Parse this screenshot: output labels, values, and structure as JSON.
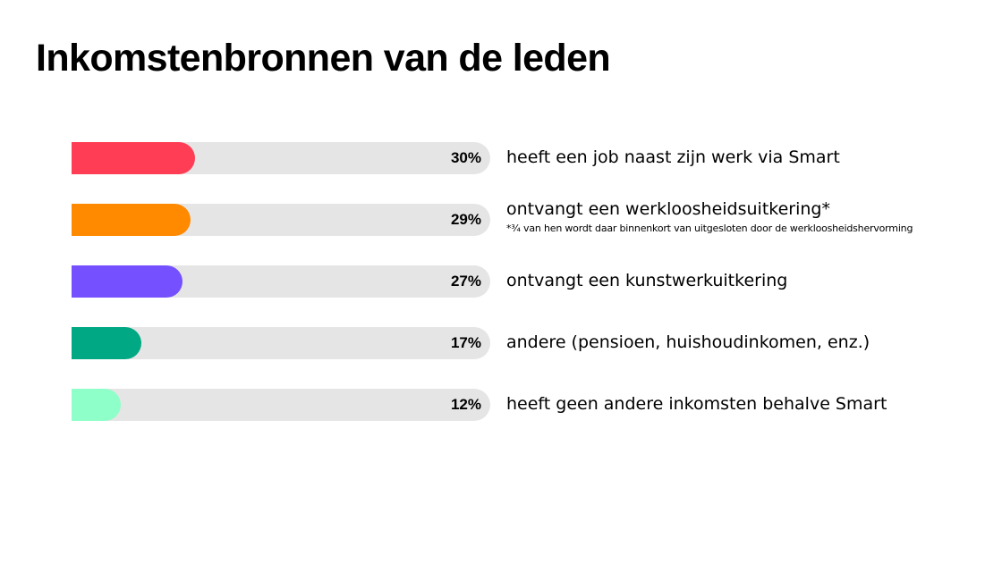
{
  "chart_data": {
    "type": "bar",
    "orientation": "horizontal",
    "title": "Inkomstenbronnen van de leden",
    "unit": "%",
    "xlim": [
      0,
      100
    ],
    "rows": [
      {
        "value": 30,
        "value_label": "30%",
        "label": "heeft een job naast zijn werk via Smart",
        "color": "#ff3d55",
        "footnote": ""
      },
      {
        "value": 29,
        "value_label": "29%",
        "label": "ontvangt een werkloosheidsuitkering*",
        "color": "#ff8a00",
        "footnote": "*¾ van hen wordt daar binnenkort van uitgesloten door de werkloosheidshervorming"
      },
      {
        "value": 27,
        "value_label": "27%",
        "label": "ontvangt een kunstwerkuitkering",
        "color": "#7550ff",
        "footnote": ""
      },
      {
        "value": 17,
        "value_label": "17%",
        "label": "andere (pensioen, huishoudinkomen, enz.)",
        "color": "#00a884",
        "footnote": ""
      },
      {
        "value": 12,
        "value_label": "12%",
        "label": "heeft geen andere inkomsten behalve Smart",
        "color": "#8effc8",
        "footnote": ""
      }
    ],
    "track_color": "#e5e5e5"
  }
}
